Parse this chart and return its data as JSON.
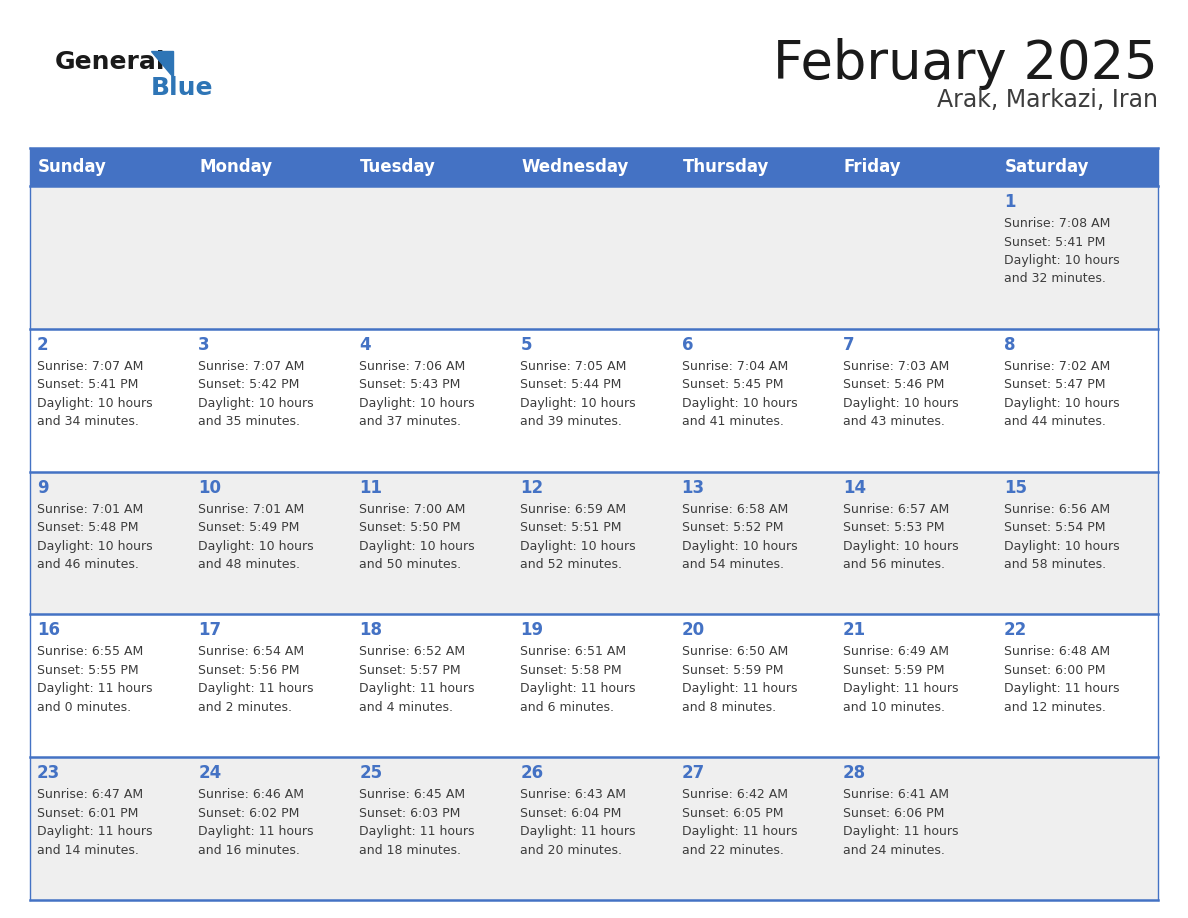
{
  "title": "February 2025",
  "subtitle": "Arak, Markazi, Iran",
  "header_bg": "#4472C4",
  "header_text_color": "#FFFFFF",
  "cell_bg_odd": "#EFEFEF",
  "cell_bg_even": "#FFFFFF",
  "day_number_color": "#4472C4",
  "text_color": "#3D3D3D",
  "line_color": "#4472C4",
  "days_of_week": [
    "Sunday",
    "Monday",
    "Tuesday",
    "Wednesday",
    "Thursday",
    "Friday",
    "Saturday"
  ],
  "calendar_data": [
    [
      null,
      null,
      null,
      null,
      null,
      null,
      {
        "day": 1,
        "sunrise": "7:08 AM",
        "sunset": "5:41 PM",
        "daylight_hours": 10,
        "daylight_minutes": 32
      }
    ],
    [
      {
        "day": 2,
        "sunrise": "7:07 AM",
        "sunset": "5:41 PM",
        "daylight_hours": 10,
        "daylight_minutes": 34
      },
      {
        "day": 3,
        "sunrise": "7:07 AM",
        "sunset": "5:42 PM",
        "daylight_hours": 10,
        "daylight_minutes": 35
      },
      {
        "day": 4,
        "sunrise": "7:06 AM",
        "sunset": "5:43 PM",
        "daylight_hours": 10,
        "daylight_minutes": 37
      },
      {
        "day": 5,
        "sunrise": "7:05 AM",
        "sunset": "5:44 PM",
        "daylight_hours": 10,
        "daylight_minutes": 39
      },
      {
        "day": 6,
        "sunrise": "7:04 AM",
        "sunset": "5:45 PM",
        "daylight_hours": 10,
        "daylight_minutes": 41
      },
      {
        "day": 7,
        "sunrise": "7:03 AM",
        "sunset": "5:46 PM",
        "daylight_hours": 10,
        "daylight_minutes": 43
      },
      {
        "day": 8,
        "sunrise": "7:02 AM",
        "sunset": "5:47 PM",
        "daylight_hours": 10,
        "daylight_minutes": 44
      }
    ],
    [
      {
        "day": 9,
        "sunrise": "7:01 AM",
        "sunset": "5:48 PM",
        "daylight_hours": 10,
        "daylight_minutes": 46
      },
      {
        "day": 10,
        "sunrise": "7:01 AM",
        "sunset": "5:49 PM",
        "daylight_hours": 10,
        "daylight_minutes": 48
      },
      {
        "day": 11,
        "sunrise": "7:00 AM",
        "sunset": "5:50 PM",
        "daylight_hours": 10,
        "daylight_minutes": 50
      },
      {
        "day": 12,
        "sunrise": "6:59 AM",
        "sunset": "5:51 PM",
        "daylight_hours": 10,
        "daylight_minutes": 52
      },
      {
        "day": 13,
        "sunrise": "6:58 AM",
        "sunset": "5:52 PM",
        "daylight_hours": 10,
        "daylight_minutes": 54
      },
      {
        "day": 14,
        "sunrise": "6:57 AM",
        "sunset": "5:53 PM",
        "daylight_hours": 10,
        "daylight_minutes": 56
      },
      {
        "day": 15,
        "sunrise": "6:56 AM",
        "sunset": "5:54 PM",
        "daylight_hours": 10,
        "daylight_minutes": 58
      }
    ],
    [
      {
        "day": 16,
        "sunrise": "6:55 AM",
        "sunset": "5:55 PM",
        "daylight_hours": 11,
        "daylight_minutes": 0
      },
      {
        "day": 17,
        "sunrise": "6:54 AM",
        "sunset": "5:56 PM",
        "daylight_hours": 11,
        "daylight_minutes": 2
      },
      {
        "day": 18,
        "sunrise": "6:52 AM",
        "sunset": "5:57 PM",
        "daylight_hours": 11,
        "daylight_minutes": 4
      },
      {
        "day": 19,
        "sunrise": "6:51 AM",
        "sunset": "5:58 PM",
        "daylight_hours": 11,
        "daylight_minutes": 6
      },
      {
        "day": 20,
        "sunrise": "6:50 AM",
        "sunset": "5:59 PM",
        "daylight_hours": 11,
        "daylight_minutes": 8
      },
      {
        "day": 21,
        "sunrise": "6:49 AM",
        "sunset": "5:59 PM",
        "daylight_hours": 11,
        "daylight_minutes": 10
      },
      {
        "day": 22,
        "sunrise": "6:48 AM",
        "sunset": "6:00 PM",
        "daylight_hours": 11,
        "daylight_minutes": 12
      }
    ],
    [
      {
        "day": 23,
        "sunrise": "6:47 AM",
        "sunset": "6:01 PM",
        "daylight_hours": 11,
        "daylight_minutes": 14
      },
      {
        "day": 24,
        "sunrise": "6:46 AM",
        "sunset": "6:02 PM",
        "daylight_hours": 11,
        "daylight_minutes": 16
      },
      {
        "day": 25,
        "sunrise": "6:45 AM",
        "sunset": "6:03 PM",
        "daylight_hours": 11,
        "daylight_minutes": 18
      },
      {
        "day": 26,
        "sunrise": "6:43 AM",
        "sunset": "6:04 PM",
        "daylight_hours": 11,
        "daylight_minutes": 20
      },
      {
        "day": 27,
        "sunrise": "6:42 AM",
        "sunset": "6:05 PM",
        "daylight_hours": 11,
        "daylight_minutes": 22
      },
      {
        "day": 28,
        "sunrise": "6:41 AM",
        "sunset": "6:06 PM",
        "daylight_hours": 11,
        "daylight_minutes": 24
      },
      null
    ]
  ],
  "logo_general_color": "#1A1A1A",
  "logo_blue_color": "#2E75B6",
  "title_fontsize": 38,
  "subtitle_fontsize": 17,
  "header_fontsize": 12,
  "day_num_fontsize": 12,
  "cell_text_fontsize": 9
}
